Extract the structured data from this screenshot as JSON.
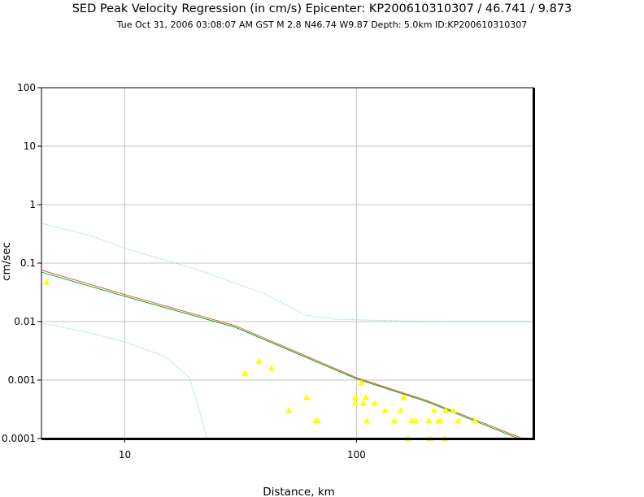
{
  "chart_data": {
    "type": "scatter",
    "title": "SED Peak Velocity Regression (in cm/s) Epicenter: KP200610310307 / 46.741 / 9.873",
    "subtitle": "Tue Oct 31, 2006 03:08:07 AM GST    M 2.8    N46.74 W9.87    Depth: 5.0km    ID:KP200610310307",
    "xlabel": "Distance, km",
    "ylabel": "cm/sec",
    "x_scale": "log",
    "y_scale": "log",
    "xlim": [
      4.37,
      580
    ],
    "ylim": [
      0.0001,
      100
    ],
    "grid": true,
    "x_ticks": [
      {
        "value": 10,
        "label": "10"
      },
      {
        "value": 100,
        "label": "100"
      }
    ],
    "y_ticks": [
      {
        "value": 0.0001,
        "label": "0.0001"
      },
      {
        "value": 0.001,
        "label": "0.001"
      },
      {
        "value": 0.01,
        "label": "0.01"
      },
      {
        "value": 0.1,
        "label": "0.1"
      },
      {
        "value": 1,
        "label": "1"
      },
      {
        "value": 10,
        "label": "10"
      },
      {
        "value": 100,
        "label": "100"
      }
    ],
    "colors": {
      "points": "#ffff00",
      "regression": "#e85050",
      "fit": "#00b000",
      "bounds": "#66dd88",
      "grid": "#c4c4c4",
      "frame": "#000000"
    },
    "observations": {
      "marker": "triangle",
      "points": [
        [
          4.6,
          0.047
        ],
        [
          33,
          0.0013
        ],
        [
          38,
          0.0021
        ],
        [
          43,
          0.0016
        ],
        [
          51,
          0.0003
        ],
        [
          61,
          0.0005
        ],
        [
          67,
          0.0002
        ],
        [
          68,
          0.0002
        ],
        [
          99,
          0.0005
        ],
        [
          99,
          0.0004
        ],
        [
          105,
          0.0009
        ],
        [
          107,
          0.0004
        ],
        [
          110,
          0.0005
        ],
        [
          111,
          0.0002
        ],
        [
          120,
          0.0004
        ],
        [
          133,
          0.0003
        ],
        [
          146,
          0.0002
        ],
        [
          155,
          0.0003
        ],
        [
          160,
          0.0005
        ],
        [
          167,
          0.0001
        ],
        [
          173,
          0.0002
        ],
        [
          180,
          0.0002
        ],
        [
          205,
          0.0002
        ],
        [
          207,
          0.0001
        ],
        [
          216,
          0.0003
        ],
        [
          226,
          0.0002
        ],
        [
          230,
          0.0002
        ],
        [
          240,
          0.0001
        ],
        [
          243,
          0.0003
        ],
        [
          262,
          0.0003
        ],
        [
          275,
          0.0002
        ],
        [
          325,
          0.0002
        ]
      ]
    },
    "lines": [
      {
        "role": "regression",
        "points": [
          [
            4.37,
            0.076
          ],
          [
            10,
            0.029
          ],
          [
            30,
            0.0085
          ],
          [
            100,
            0.0011
          ],
          [
            200,
            0.00045
          ],
          [
            520,
            0.0001
          ]
        ]
      },
      {
        "role": "fit",
        "points": [
          [
            4.37,
            0.07
          ],
          [
            10,
            0.027
          ],
          [
            30,
            0.008
          ],
          [
            100,
            0.00105
          ],
          [
            200,
            0.00043
          ],
          [
            500,
            0.0001
          ]
        ]
      },
      {
        "role": "upper-bound",
        "points": [
          [
            4.37,
            0.48
          ],
          [
            7,
            0.3
          ],
          [
            10,
            0.18
          ],
          [
            20,
            0.08
          ],
          [
            40,
            0.03
          ],
          [
            60,
            0.013
          ],
          [
            80,
            0.011
          ],
          [
            150,
            0.0103
          ],
          [
            300,
            0.01
          ],
          [
            580,
            0.01
          ]
        ]
      },
      {
        "role": "lower-bound",
        "points": [
          [
            4.37,
            0.0095
          ],
          [
            7,
            0.0065
          ],
          [
            10,
            0.0045
          ],
          [
            15,
            0.0025
          ],
          [
            19,
            0.0011
          ],
          [
            21,
            0.0003
          ],
          [
            22.6,
            0.0001
          ]
        ]
      }
    ]
  }
}
